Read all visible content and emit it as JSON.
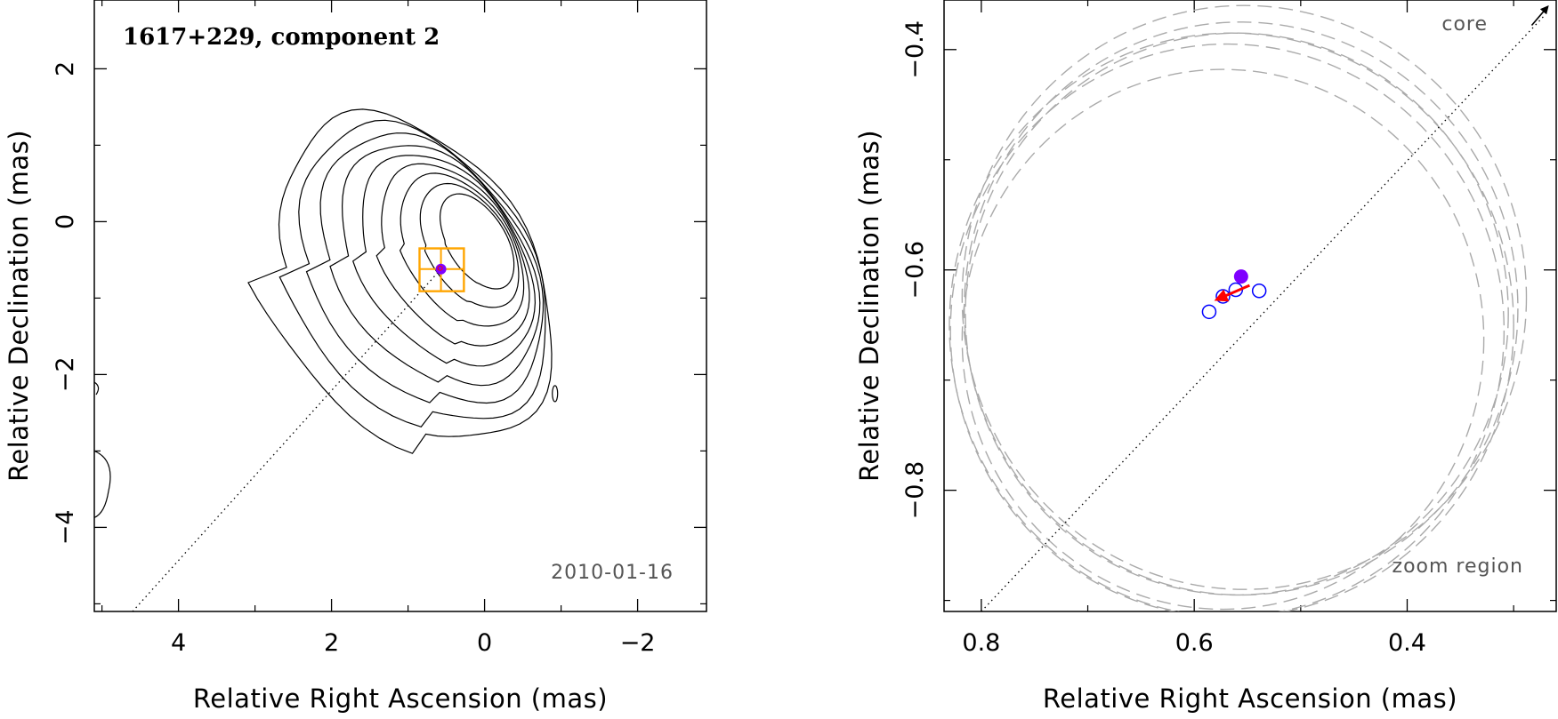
{
  "colors": {
    "contour": "#000000",
    "box": "#ffa500",
    "filled_marker": "#7f00ff",
    "open_marker": "#0000ff",
    "motion_arrow": "#ff0000",
    "beam_circles": "#aaaaaa"
  },
  "chart_data": [
    {
      "type": "contour",
      "title": "1617+229, component 2",
      "date_label": "2010-01-16",
      "xlabel": "Relative Right Ascension (mas)",
      "ylabel": "Relative Declination (mas)",
      "xlim": [
        5.1,
        -2.9
      ],
      "ylim": [
        -5.1,
        2.9
      ],
      "xticks": [
        4,
        2,
        0,
        -2
      ],
      "xtick_labels": [
        "4",
        "2",
        "0",
        "−2"
      ],
      "yticks": [
        2,
        0,
        -2,
        -4
      ],
      "ytick_labels": [
        "2",
        "0",
        "−2",
        "−4"
      ],
      "contour_center": [
        0,
        -0.2
      ],
      "contour_levels": 9,
      "component_position": [
        0.57,
        -0.62
      ],
      "zoom_box": {
        "ra": [
          0.85,
          0.27
        ],
        "dec": [
          -0.91,
          -0.35
        ]
      },
      "jet_axis": {
        "from": [
          4.6,
          -5.1
        ],
        "to": [
          0.57,
          -0.62
        ]
      }
    },
    {
      "type": "scatter",
      "xlabel": "Relative Right Ascension (mas)",
      "ylabel": "Relative Declination (mas)",
      "xlim": [
        0.835,
        0.26
      ],
      "ylim": [
        -0.91,
        -0.355
      ],
      "xticks": [
        0.8,
        0.6,
        0.4
      ],
      "xtick_labels": [
        "0.8",
        "0.6",
        "0.4"
      ],
      "yticks": [
        -0.4,
        -0.6,
        -0.8
      ],
      "ytick_labels": [
        "−0.4",
        "−0.6",
        "−0.8"
      ],
      "core_label": "core",
      "zoom_label": "zoom region",
      "points_open": [
        {
          "x": 0.586,
          "y": -0.638
        },
        {
          "x": 0.573,
          "y": -0.624
        },
        {
          "x": 0.561,
          "y": -0.618
        },
        {
          "x": 0.539,
          "y": -0.619
        }
      ],
      "point_filled": {
        "x": 0.556,
        "y": -0.606
      },
      "motion_vector": {
        "from": [
          0.548,
          -0.614
        ],
        "to": [
          0.579,
          -0.627
        ]
      },
      "jet_axis": {
        "from": [
          0.8,
          -0.91
        ],
        "to": [
          0.26,
          -0.355
        ]
      },
      "beam_circles": [
        {
          "x": 0.553,
          "y": -0.625,
          "r": 0.265
        },
        {
          "x": 0.556,
          "y": -0.635,
          "r": 0.26
        },
        {
          "x": 0.56,
          "y": -0.64,
          "r": 0.255
        },
        {
          "x": 0.565,
          "y": -0.65,
          "r": 0.265
        },
        {
          "x": 0.569,
          "y": -0.655,
          "r": 0.26
        },
        {
          "x": 0.573,
          "y": -0.663,
          "r": 0.245
        }
      ]
    }
  ]
}
